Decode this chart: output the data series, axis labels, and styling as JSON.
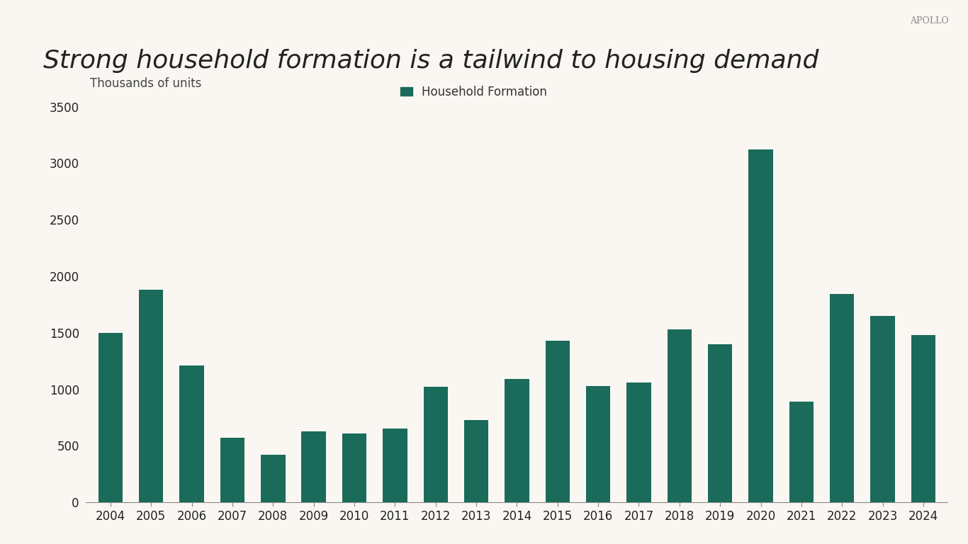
{
  "title": "Strong household formation is a tailwind to housing demand",
  "ylabel": "Thousands of units",
  "watermark": "APOLLO",
  "bar_color": "#1a6b5a",
  "legend_label": "Household Formation",
  "years": [
    2004,
    2005,
    2006,
    2007,
    2008,
    2009,
    2010,
    2011,
    2012,
    2013,
    2014,
    2015,
    2016,
    2017,
    2018,
    2019,
    2020,
    2021,
    2022,
    2023,
    2024
  ],
  "values": [
    1500,
    1880,
    1210,
    570,
    420,
    630,
    610,
    650,
    1020,
    730,
    1090,
    1430,
    1030,
    1060,
    1530,
    1400,
    3120,
    890,
    1840,
    1650,
    1480
  ],
  "ylim": [
    0,
    3500
  ],
  "yticks": [
    0,
    500,
    1000,
    1500,
    2000,
    2500,
    3000,
    3500
  ],
  "background_color": "#faf7f2",
  "title_fontsize": 26,
  "label_fontsize": 12,
  "tick_fontsize": 12,
  "watermark_fontsize": 9
}
